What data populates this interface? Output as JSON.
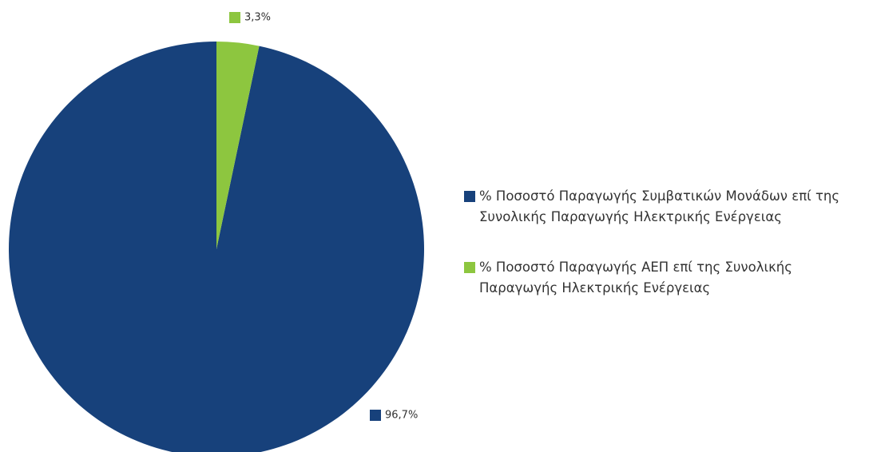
{
  "chart_data": {
    "type": "pie",
    "categories": [
      "% Ποσοστό Παραγωγής Συμβατικών Μονάδων επί της Συνολικής Παραγωγής Ηλεκτρικής Ενέργειας",
      "% Ποσοστό Παραγωγής ΑΕΠ επί της Συνολικής Παραγωγής Ηλεκτρικής Ενέργειας"
    ],
    "values": [
      96.7,
      3.3
    ],
    "value_labels": [
      "96,7%",
      "3,3%"
    ],
    "colors": [
      "#17417b",
      "#8dc63f"
    ],
    "legend": "right"
  }
}
